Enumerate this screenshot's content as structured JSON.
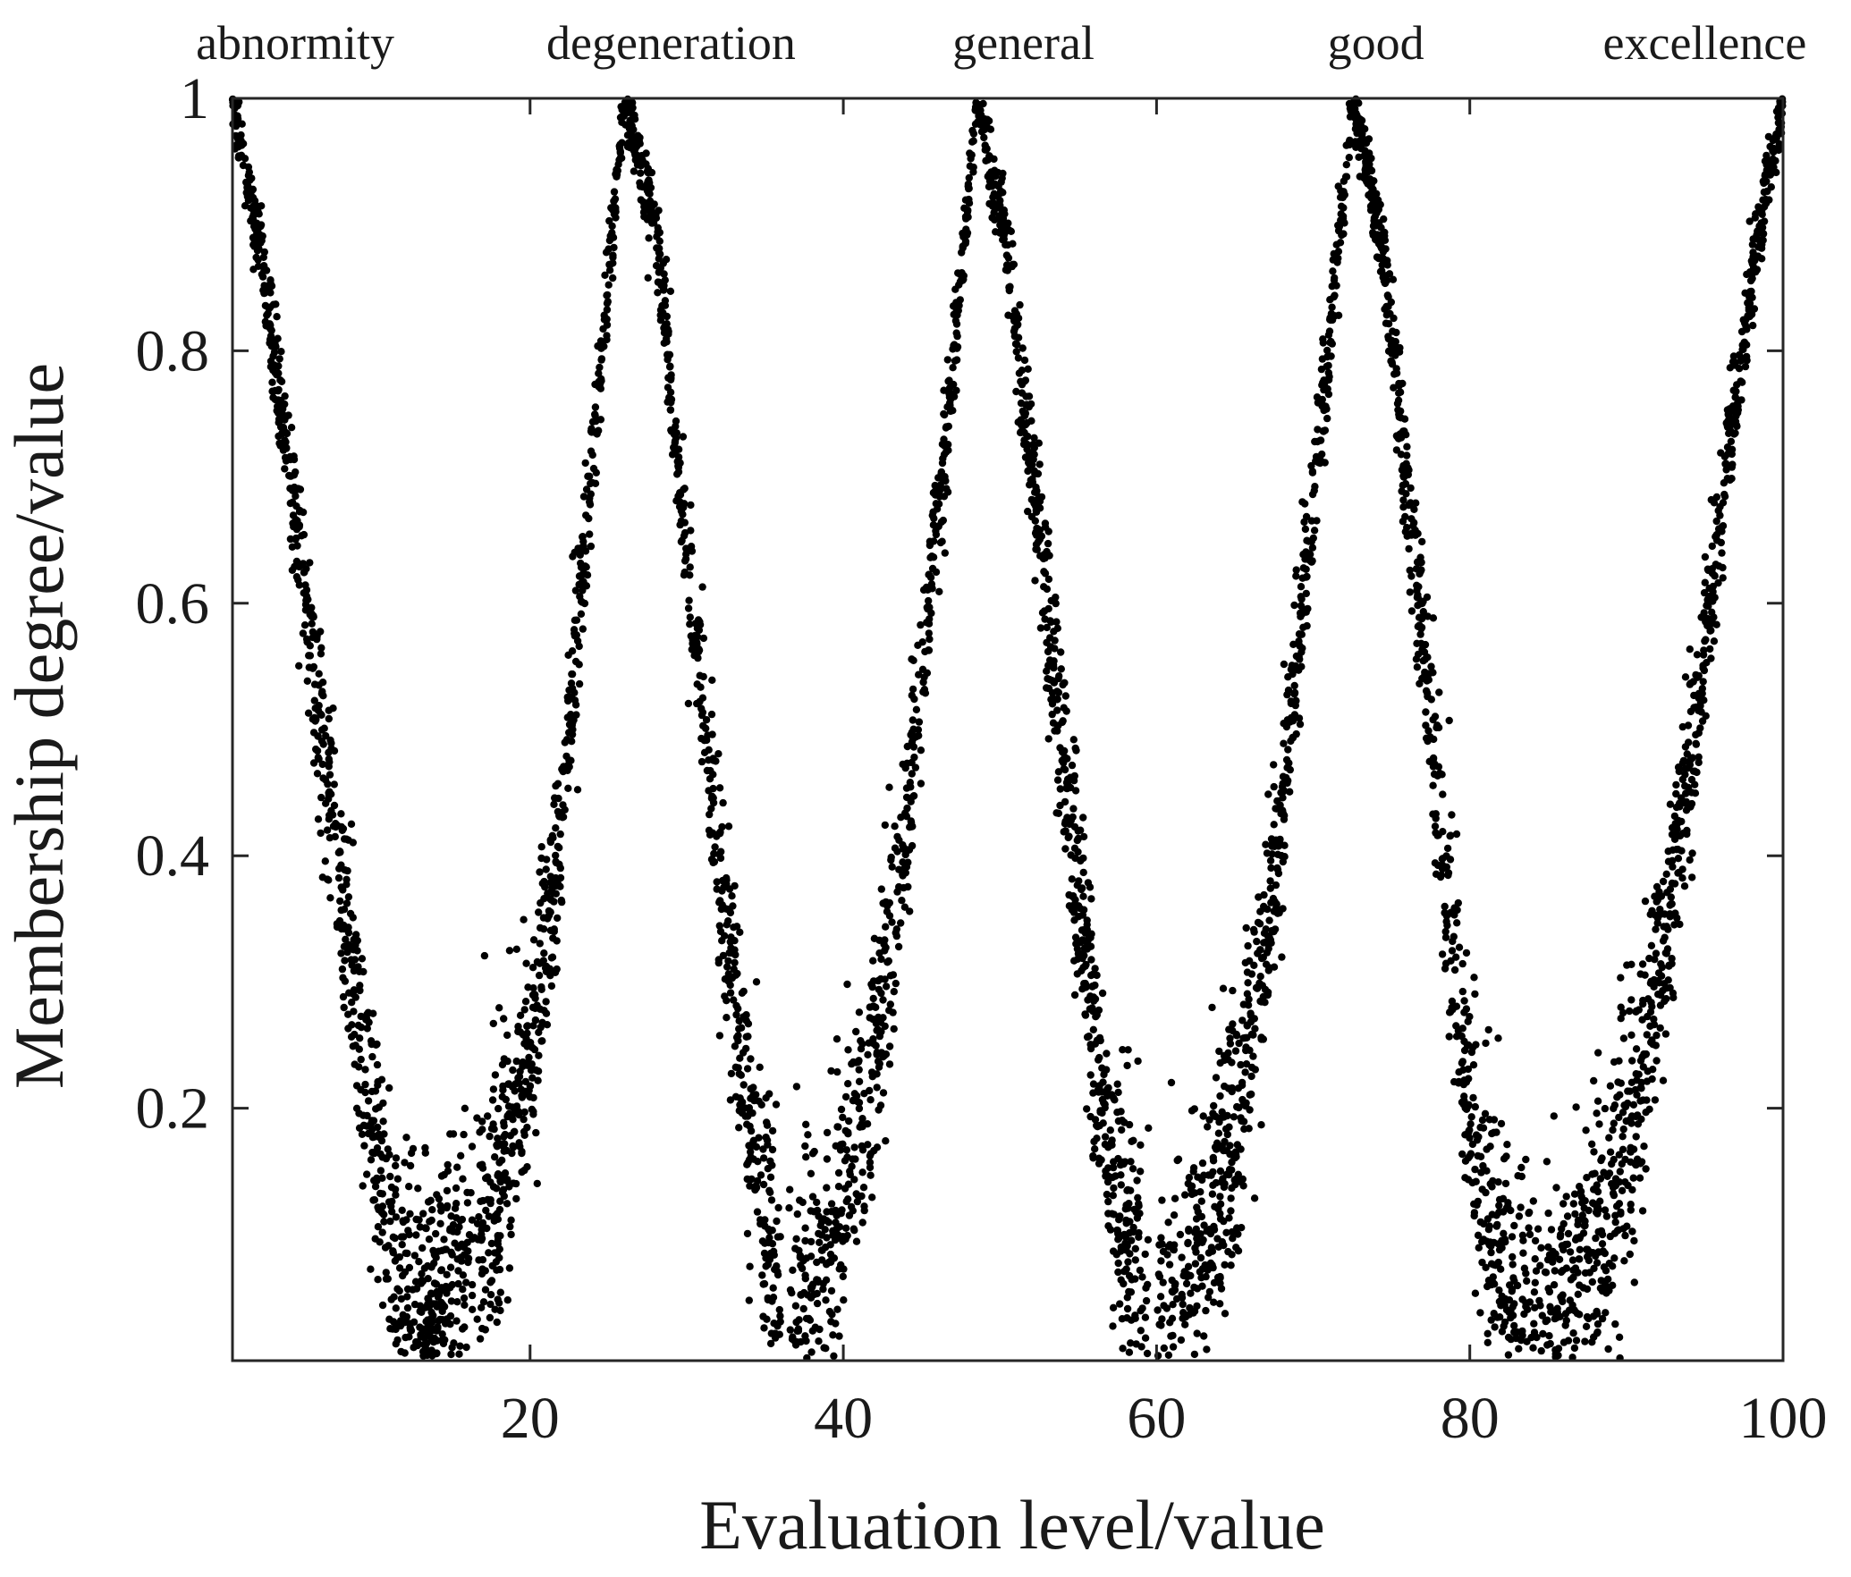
{
  "chart_data": {
    "type": "scatter",
    "title": "",
    "xlabel": "Evaluation level/value",
    "ylabel": "Membership degree/value",
    "xlim": [
      1,
      100
    ],
    "ylim": [
      0,
      1
    ],
    "xticks": [
      20,
      40,
      60,
      80,
      100
    ],
    "yticks": [
      0.2,
      0.4,
      0.6,
      0.8,
      1
    ],
    "ytick_labels": [
      "0.2",
      "0.4",
      "0.6",
      "0.8",
      "1"
    ],
    "grid": false,
    "marker_color": "#000000",
    "level_labels": [
      {
        "text": "abnormity",
        "x": 5
      },
      {
        "text": "degeneration",
        "x": 29
      },
      {
        "text": "general",
        "x": 51.5
      },
      {
        "text": "good",
        "x": 74
      },
      {
        "text": "excellence",
        "x": 95
      }
    ],
    "series": [
      {
        "name": "abnormity",
        "x": [
          1.0,
          2.5,
          4.0,
          5.5,
          7.0,
          8.5,
          10.0,
          11.5,
          13.0,
          14.5
        ],
        "y": [
          1.0,
          0.9,
          0.77,
          0.62,
          0.47,
          0.32,
          0.18,
          0.08,
          0.03,
          0.01
        ]
      },
      {
        "name": "degeneration",
        "x": [
          13.0,
          16.0,
          19.0,
          21.5,
          24.0,
          26.0,
          28.0,
          30.0,
          32.0,
          34.0,
          36.0
        ],
        "y": [
          0.02,
          0.07,
          0.18,
          0.36,
          0.72,
          1.0,
          0.9,
          0.64,
          0.4,
          0.18,
          0.04
        ]
      },
      {
        "name": "general",
        "x": [
          36.5,
          39.0,
          41.5,
          44.0,
          46.5,
          48.5,
          50.5,
          52.5,
          55.0,
          57.0,
          59.5
        ],
        "y": [
          0.02,
          0.08,
          0.2,
          0.42,
          0.72,
          1.0,
          0.88,
          0.65,
          0.37,
          0.15,
          0.02
        ]
      },
      {
        "name": "good",
        "x": [
          60.0,
          62.5,
          65.0,
          67.5,
          70.0,
          72.5,
          74.5,
          76.5,
          78.5,
          80.5,
          83.0
        ],
        "y": [
          0.02,
          0.07,
          0.18,
          0.38,
          0.68,
          1.0,
          0.88,
          0.63,
          0.37,
          0.15,
          0.02
        ]
      },
      {
        "name": "excellence",
        "x": [
          83.0,
          86.0,
          89.0,
          91.5,
          94.0,
          96.5,
          98.5,
          100.0
        ],
        "y": [
          0.01,
          0.04,
          0.12,
          0.26,
          0.46,
          0.72,
          0.9,
          1.0
        ]
      }
    ]
  }
}
